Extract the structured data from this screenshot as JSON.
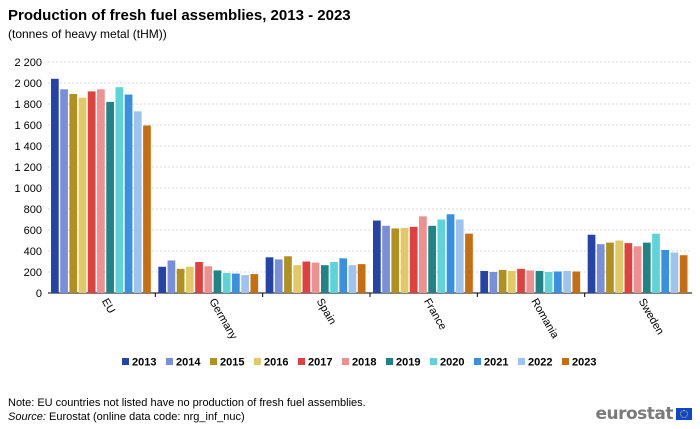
{
  "title": "Production of fresh fuel assemblies, 2013 - 2023",
  "subtitle": "(tonnes of heavy metal (tHM))",
  "note": "Note: EU countries not listed have no production of fresh fuel assemblies.",
  "source_label": "Source:",
  "source_text": "Eurostat (online data code: nrg_inf_nuc)",
  "logo_text": "eurostat",
  "chart_data": {
    "type": "bar",
    "title": "Production of fresh fuel assemblies, 2013 - 2023",
    "ylabel": "tonnes of heavy metal (tHM)",
    "xlabel": "",
    "ylim": [
      0,
      2200
    ],
    "yticks": [
      0,
      200,
      400,
      600,
      800,
      1000,
      1200,
      1400,
      1600,
      1800,
      2000,
      2200
    ],
    "ytick_labels": [
      "0",
      "200",
      "400",
      "600",
      "800",
      "1 000",
      "1 200",
      "1 400",
      "1 600",
      "1 800",
      "2 000",
      "2 200"
    ],
    "grid": true,
    "legend_position": "bottom",
    "categories": [
      "EU",
      "Germany",
      "Spain",
      "France",
      "Romania",
      "Sweden"
    ],
    "series": [
      {
        "name": "2013",
        "color": "#2644a7",
        "values": [
          2040,
          250,
          340,
          690,
          210,
          555
        ]
      },
      {
        "name": "2014",
        "color": "#7a8fd9",
        "values": [
          1940,
          310,
          320,
          640,
          200,
          465
        ]
      },
      {
        "name": "2015",
        "color": "#b09120",
        "values": [
          1895,
          230,
          350,
          615,
          220,
          480
        ]
      },
      {
        "name": "2016",
        "color": "#e0c966",
        "values": [
          1860,
          250,
          265,
          620,
          210,
          500
        ]
      },
      {
        "name": "2017",
        "color": "#e04040",
        "values": [
          1920,
          295,
          300,
          630,
          230,
          475
        ]
      },
      {
        "name": "2018",
        "color": "#ee9090",
        "values": [
          1940,
          255,
          290,
          730,
          215,
          445
        ]
      },
      {
        "name": "2019",
        "color": "#208486",
        "values": [
          1820,
          215,
          265,
          640,
          210,
          480
        ]
      },
      {
        "name": "2020",
        "color": "#5ed3d8",
        "values": [
          1960,
          190,
          295,
          700,
          200,
          565
        ]
      },
      {
        "name": "2021",
        "color": "#3a90e0",
        "values": [
          1890,
          185,
          330,
          750,
          205,
          410
        ]
      },
      {
        "name": "2022",
        "color": "#9cc4ee",
        "values": [
          1730,
          170,
          265,
          700,
          210,
          385
        ]
      },
      {
        "name": "2023",
        "color": "#c76e12",
        "values": [
          1595,
          180,
          275,
          565,
          205,
          360
        ]
      }
    ]
  }
}
